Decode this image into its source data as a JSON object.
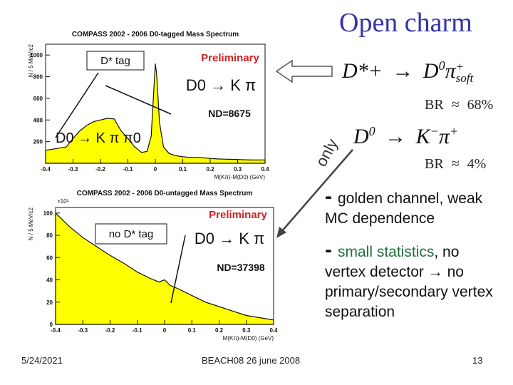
{
  "slide": {
    "title": "Open charm",
    "footer_date": "5/24/2021",
    "footer_event": "BEACH08 26 june 2008",
    "page_number": "13",
    "only_label": "only"
  },
  "equations": {
    "dstar_parent": "D*+",
    "dstar_arrow": "→",
    "dstar_daughter": "D",
    "dstar_daughter_sup": "0",
    "dstar_pion": "π",
    "dstar_pion_sup": "+",
    "dstar_pion_sub": "soft",
    "dstar_br_label": "BR",
    "dstar_br_approx": "≈",
    "dstar_br_value": "68%",
    "d0_parent": "D",
    "d0_parent_sup": "0",
    "d0_arrow": "→",
    "d0_kaon": "K",
    "d0_kaon_sup": "−",
    "d0_pion": "π",
    "d0_pion_sup": "+",
    "d0_br_label": "BR",
    "d0_br_approx": "≈",
    "d0_br_value": "4%"
  },
  "bullets": [
    {
      "dash": "-",
      "text": "golden channel, weak MC dependence"
    },
    {
      "dash": "-",
      "text_highlight": "small statistics",
      "text": ", no vertex detector → no primary/secondary vertex separation"
    }
  ],
  "colors": {
    "fill": "#ffff00",
    "title": "#3333aa",
    "preliminary": "#cc2222",
    "highlight": "#1f6f3f",
    "arrow_fill": "#ffffff",
    "arrow_stroke": "#555555"
  },
  "chart_data": [
    {
      "type": "area",
      "title": "COMPASS 2002 - 2006 D0-tagged Mass Spectrum",
      "ylabel": "N / 5 MeV/c2",
      "xlabel": "M(Kπ)-M(D0) (GeV)",
      "xlim": [
        -0.4,
        0.4
      ],
      "ylim": [
        0,
        1100
      ],
      "x_ticks": [
        "-0.4",
        "-0.3",
        "-0.2",
        "-0.1",
        "0",
        "0.1",
        "0.2",
        "0.3",
        "0.4"
      ],
      "y_ticks": [
        "1000",
        "800",
        "600",
        "400",
        "200"
      ],
      "annotations": {
        "tag": "D* tag",
        "preliminary": "Preliminary",
        "signal": "D0 → K π",
        "count": "ND=8675",
        "reflection": "D0 → K π π0"
      },
      "x": [
        -0.4,
        -0.375,
        -0.35,
        -0.325,
        -0.3,
        -0.275,
        -0.25,
        -0.225,
        -0.2,
        -0.175,
        -0.15,
        -0.125,
        -0.1,
        -0.075,
        -0.05,
        -0.03,
        -0.015,
        -0.005,
        0.0,
        0.005,
        0.015,
        0.03,
        0.05,
        0.075,
        0.1,
        0.125,
        0.15,
        0.175,
        0.2,
        0.225,
        0.25,
        0.275,
        0.3,
        0.325,
        0.35,
        0.375,
        0.4
      ],
      "values": [
        120,
        130,
        140,
        150,
        230,
        300,
        350,
        385,
        400,
        415,
        410,
        300,
        230,
        150,
        100,
        110,
        250,
        700,
        920,
        820,
        380,
        150,
        90,
        70,
        60,
        55,
        55,
        50,
        45,
        40,
        38,
        36,
        35,
        32,
        30,
        30,
        30
      ]
    },
    {
      "type": "area",
      "title": "COMPASS 2002 - 2006 D0-untagged Mass Spectrum",
      "ylabel": "N / 5 MeV/c2",
      "xlabel": "M(Kπ)-M(D0) (GeV)",
      "y_multiplier": "×10³",
      "xlim": [
        -0.4,
        0.4
      ],
      "ylim": [
        0,
        105
      ],
      "x_ticks": [
        "-0.4",
        "-0.3",
        "-0.2",
        "-0.1",
        "0",
        "0.1",
        "0.2",
        "0.3",
        "0.4"
      ],
      "y_ticks": [
        "100",
        "80",
        "60",
        "40",
        "20",
        "0"
      ],
      "annotations": {
        "tag": "no D* tag",
        "preliminary": "Preliminary",
        "signal": "D0 → K π",
        "count": "ND=37398"
      },
      "x": [
        -0.4,
        -0.35,
        -0.3,
        -0.25,
        -0.2,
        -0.15,
        -0.1,
        -0.05,
        -0.02,
        0.0,
        0.02,
        0.05,
        0.1,
        0.15,
        0.2,
        0.25,
        0.3,
        0.35,
        0.4
      ],
      "values": [
        100,
        88,
        78,
        70,
        62,
        55,
        47,
        41,
        38,
        40,
        35,
        32,
        26,
        20,
        16,
        12,
        8,
        6,
        4
      ]
    }
  ]
}
